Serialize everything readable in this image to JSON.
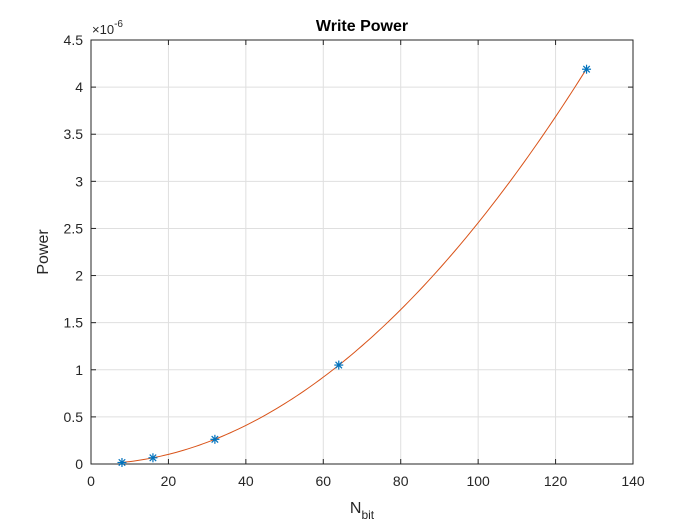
{
  "chart_data": {
    "type": "scatter",
    "title": "Write Power",
    "xlabel": {
      "main": "N",
      "sub": "bit"
    },
    "ylabel": "Power",
    "y_exponent": {
      "base": "×10",
      "power": "-6"
    },
    "xlim": [
      0,
      140
    ],
    "ylim": [
      0,
      4.5
    ],
    "x_ticks": [
      "0",
      "20",
      "40",
      "60",
      "80",
      "100",
      "120",
      "140"
    ],
    "y_ticks": [
      "0",
      "0.5",
      "1",
      "1.5",
      "2",
      "2.5",
      "3",
      "3.5",
      "4",
      "4.5"
    ],
    "grid": true,
    "series": [
      {
        "kind": "markers",
        "marker": "asterisk",
        "color": "#0072BD",
        "x": [
          8,
          16,
          32,
          64,
          128
        ],
        "y": [
          0.016,
          0.066,
          0.262,
          1.05,
          4.19
        ]
      },
      {
        "kind": "fit-curve",
        "color": "#D95319",
        "x_range": [
          8,
          128
        ],
        "coef_quadratic": 0.000256
      }
    ]
  }
}
